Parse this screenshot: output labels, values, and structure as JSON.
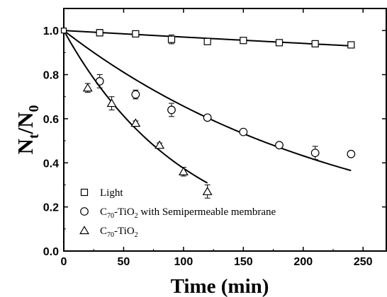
{
  "chart_data": {
    "type": "scatter",
    "xlabel": "Time (min)",
    "ylabel": {
      "main": "N",
      "sub1": "t",
      "slash": "/N",
      "sub2": "0"
    },
    "xlim": [
      0,
      270
    ],
    "ylim": [
      0.0,
      1.1
    ],
    "xticks": [
      0,
      50,
      100,
      150,
      200,
      250
    ],
    "yticks": [
      0.0,
      0.2,
      0.4,
      0.6,
      0.8,
      1.0
    ],
    "grid": false,
    "legend_position": "bottom-left",
    "series": [
      {
        "name": "Light",
        "legend": {
          "pre": "Light",
          "sub": "",
          "post": ""
        },
        "marker": "square",
        "points": [
          {
            "x": 0,
            "y": 1.0,
            "err": 0.02
          },
          {
            "x": 30,
            "y": 0.99,
            "err": 0.015
          },
          {
            "x": 60,
            "y": 0.985,
            "err": 0.01
          },
          {
            "x": 90,
            "y": 0.96,
            "err": 0.02
          },
          {
            "x": 120,
            "y": 0.95,
            "err": 0.01
          },
          {
            "x": 150,
            "y": 0.955,
            "err": 0.01
          },
          {
            "x": 180,
            "y": 0.945,
            "err": 0.01
          },
          {
            "x": 210,
            "y": 0.94,
            "err": 0.01
          },
          {
            "x": 240,
            "y": 0.935,
            "err": 0.01
          }
        ],
        "fit": {
          "x_end": 240,
          "k": 0.0003
        }
      },
      {
        "name": "C70-TiO2 with Semipermeable membrane",
        "legend": {
          "pre": "C",
          "sub": "70",
          "post": "-TiO",
          "sub2": "2",
          "tail": " with Semipermeable membrane"
        },
        "marker": "circle",
        "points": [
          {
            "x": 0,
            "y": 1.0,
            "err": 0.02
          },
          {
            "x": 30,
            "y": 0.77,
            "err": 0.03
          },
          {
            "x": 60,
            "y": 0.71,
            "err": 0.02
          },
          {
            "x": 90,
            "y": 0.64,
            "err": 0.03
          },
          {
            "x": 120,
            "y": 0.605,
            "err": 0.01
          },
          {
            "x": 150,
            "y": 0.54,
            "err": 0.01
          },
          {
            "x": 180,
            "y": 0.48,
            "err": 0.01
          },
          {
            "x": 210,
            "y": 0.445,
            "err": 0.03
          },
          {
            "x": 240,
            "y": 0.44,
            "err": 0.01
          }
        ],
        "fit": {
          "x_end": 240,
          "k": 0.0042
        }
      },
      {
        "name": "C70-TiO2",
        "legend": {
          "pre": "C",
          "sub": "70",
          "post": "-TiO",
          "sub2": "2",
          "tail": ""
        },
        "marker": "triangle",
        "points": [
          {
            "x": 0,
            "y": 1.0,
            "err": 0.02
          },
          {
            "x": 20,
            "y": 0.74,
            "err": 0.02
          },
          {
            "x": 40,
            "y": 0.67,
            "err": 0.03
          },
          {
            "x": 60,
            "y": 0.58,
            "err": 0.01
          },
          {
            "x": 80,
            "y": 0.48,
            "err": 0.01
          },
          {
            "x": 100,
            "y": 0.36,
            "err": 0.02
          },
          {
            "x": 120,
            "y": 0.27,
            "err": 0.03
          }
        ],
        "fit": {
          "x_end": 120,
          "k": 0.0098
        }
      }
    ]
  }
}
